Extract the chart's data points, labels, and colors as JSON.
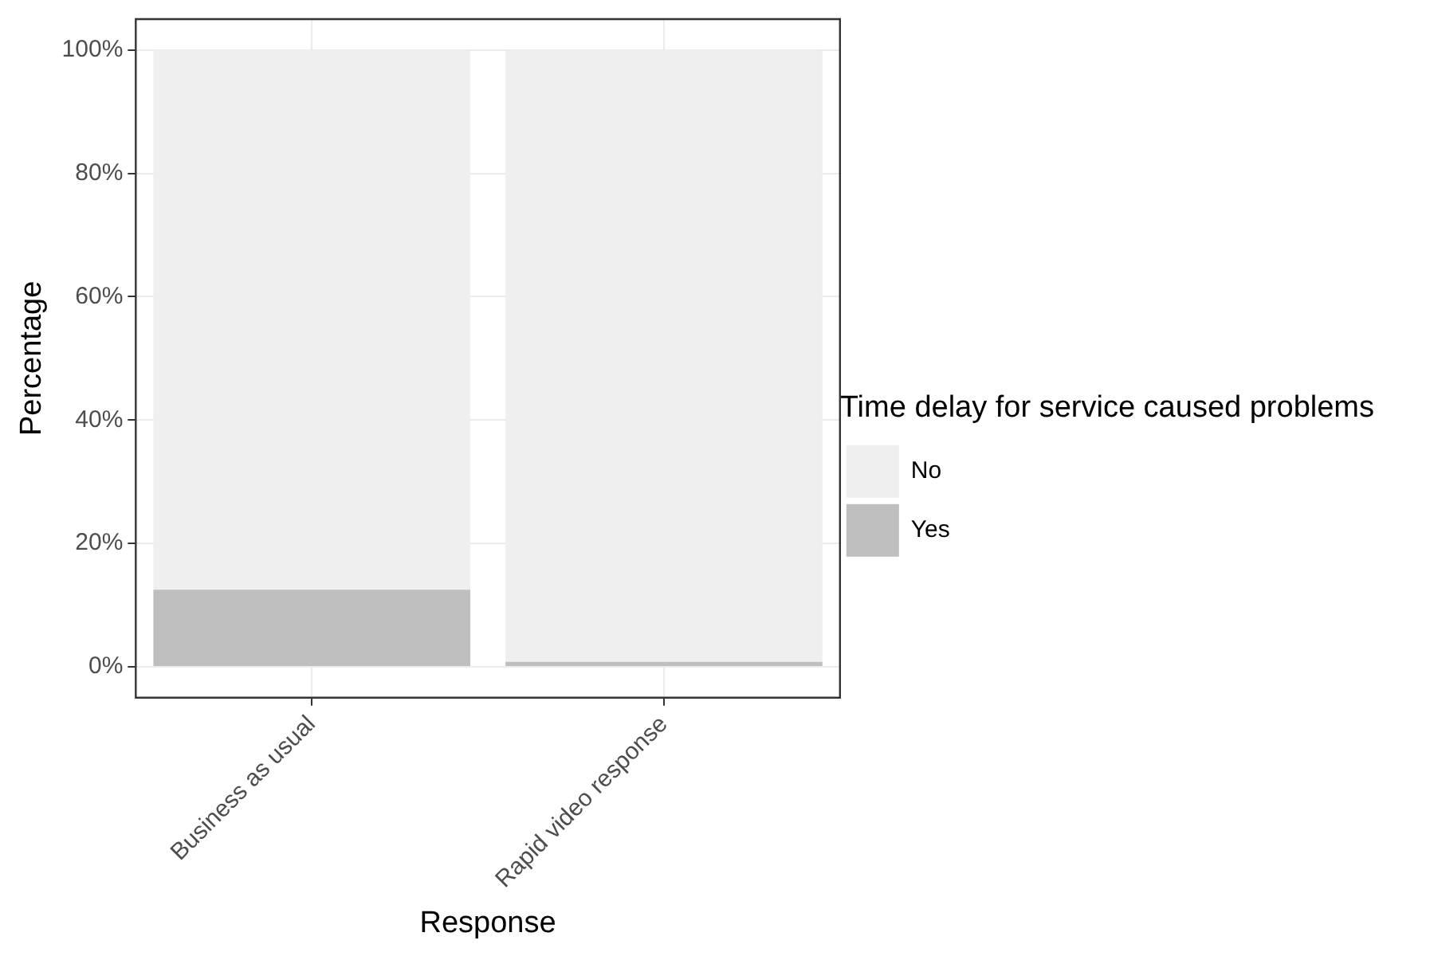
{
  "chart_data": {
    "type": "bar",
    "xlabel": "Response",
    "ylabel": "Percentage",
    "legend_title": "Time delay for service caused problems",
    "categories": [
      "Business as usual",
      "Rapid video response"
    ],
    "stacked": true,
    "series": [
      {
        "name": "Yes",
        "color": "#bebebe",
        "values": [
          12.5,
          0.8
        ]
      },
      {
        "name": "No",
        "color": "#efefef",
        "values": [
          87.5,
          99.2
        ]
      }
    ],
    "ylim": [
      -5,
      105
    ],
    "yticks": [
      {
        "value": 0,
        "label": "0%"
      },
      {
        "value": 20,
        "label": "20%"
      },
      {
        "value": 40,
        "label": "40%"
      },
      {
        "value": 60,
        "label": "60%"
      },
      {
        "value": 80,
        "label": "80%"
      },
      {
        "value": 100,
        "label": "100%"
      }
    ],
    "grid": true,
    "legend": "right"
  }
}
